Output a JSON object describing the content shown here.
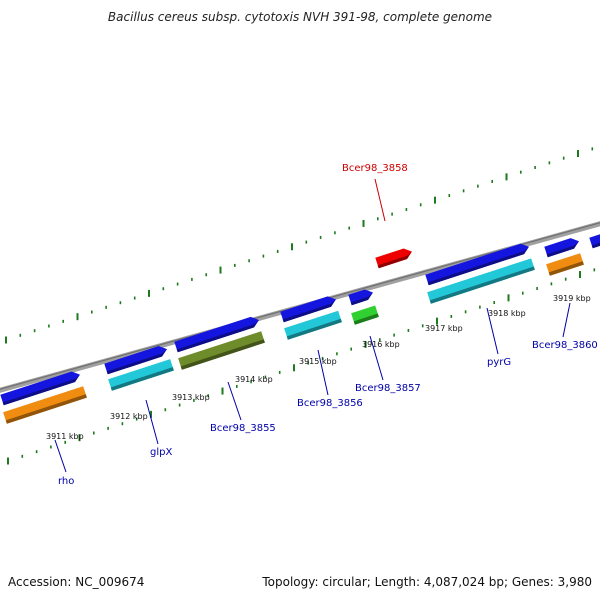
{
  "title": "Bacillus cereus subsp. cytotoxis NVH 391-98, complete genome",
  "accession_text": "Accession: NC_009674",
  "stats_text": "Topology: circular; Length: 4,087,024 bp; Genes: 3,980",
  "colors": {
    "backbone": "#888888",
    "tick": "#1e7a1e",
    "label_default": "#0000aa",
    "label_highlight": "#cc0000",
    "blue": "#1515e0",
    "cyan": "#22c8d8",
    "orange": "#f08c10",
    "olive": "#6e8c2a",
    "green": "#30d030",
    "red": "#ee0000"
  },
  "kbp_labels": [
    "3911 kbp",
    "3912 kbp",
    "3913 kbp",
    "3914 kbp",
    "3915 kbp",
    "3916 kbp",
    "3917 kbp",
    "3918 kbp",
    "3919 kbp"
  ],
  "genes": [
    {
      "name": "rho",
      "color": "orange"
    },
    {
      "name": "glpX",
      "color": "cyan"
    },
    {
      "name": "Bcer98_3855",
      "color": "olive"
    },
    {
      "name": "Bcer98_3856",
      "color": "cyan"
    },
    {
      "name": "Bcer98_3857",
      "color": "green"
    },
    {
      "name": "Bcer98_3858",
      "color": "red"
    },
    {
      "name": "pyrG",
      "color": "cyan"
    },
    {
      "name": "Bcer98_3860",
      "color": "orange"
    }
  ],
  "cds_track_color": "blue"
}
